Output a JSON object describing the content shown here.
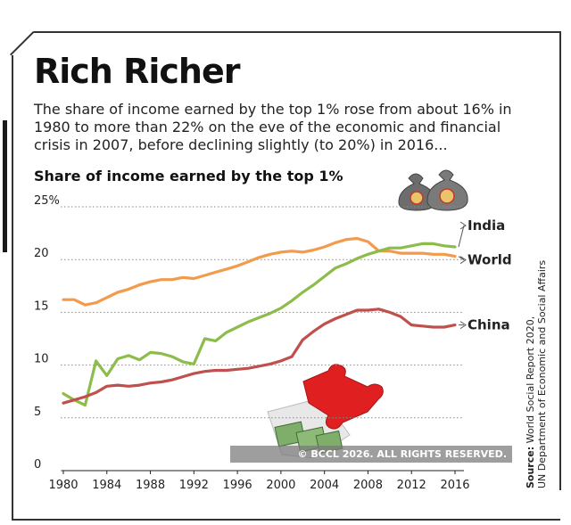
{
  "header": {
    "title": "Rich Richer",
    "subtitle": "The share of income earned by the top 1% rose from about 16% in 1980 to more than 22% on the eve of the economic and financial crisis in 2007, before declining slightly (to 20%) in 2016..."
  },
  "watermark": "© BCCL 2026. ALL RIGHTS RESERVED.",
  "source": {
    "label": "Source:",
    "text": " World Social Report 2020,",
    "text2": "UN Department of Economic and Social Affairs"
  },
  "chart_data": {
    "type": "line",
    "title": "Share of income earned by the top 1%",
    "xlabel": "",
    "ylabel": "",
    "xlim": [
      1980,
      2016
    ],
    "ylim": [
      0,
      25
    ],
    "yticks": [
      {
        "value": 25,
        "label": "25%"
      },
      {
        "value": 20,
        "label": "20"
      },
      {
        "value": 15,
        "label": "15"
      },
      {
        "value": 10,
        "label": "10"
      },
      {
        "value": 5,
        "label": "5"
      },
      {
        "value": 0,
        "label": "0"
      }
    ],
    "xticks": [
      1980,
      1984,
      1988,
      1992,
      1996,
      2000,
      2004,
      2008,
      2012,
      2016
    ],
    "grid": "dotted horizontal",
    "series": [
      {
        "name": "World",
        "color": "#f39a4b",
        "x": [
          1980,
          1981,
          1982,
          1983,
          1984,
          1985,
          1986,
          1987,
          1988,
          1989,
          1990,
          1991,
          1992,
          1993,
          1994,
          1995,
          1996,
          1997,
          1998,
          1999,
          2000,
          2001,
          2002,
          2003,
          2004,
          2005,
          2006,
          2007,
          2008,
          2009,
          2010,
          2011,
          2012,
          2013,
          2014,
          2015,
          2016
        ],
        "values": [
          16.2,
          16.2,
          15.7,
          15.9,
          16.4,
          16.9,
          17.2,
          17.6,
          17.9,
          18.1,
          18.1,
          18.3,
          18.2,
          18.5,
          18.8,
          19.1,
          19.4,
          19.8,
          20.2,
          20.5,
          20.7,
          20.8,
          20.7,
          20.9,
          21.2,
          21.6,
          21.9,
          22.0,
          21.7,
          20.8,
          20.8,
          20.6,
          20.6,
          20.6,
          20.5,
          20.5,
          20.3
        ]
      },
      {
        "name": "India",
        "color": "#8cbd4a",
        "x": [
          1980,
          1981,
          1982,
          1983,
          1984,
          1985,
          1986,
          1987,
          1988,
          1989,
          1990,
          1991,
          1992,
          1993,
          1994,
          1995,
          1996,
          1997,
          1998,
          1999,
          2000,
          2001,
          2002,
          2003,
          2004,
          2005,
          2006,
          2007,
          2008,
          2009,
          2010,
          2011,
          2012,
          2013,
          2014,
          2015,
          2016
        ],
        "values": [
          7.3,
          6.7,
          6.2,
          10.4,
          9.0,
          10.6,
          10.9,
          10.5,
          11.2,
          11.1,
          10.8,
          10.3,
          10.1,
          12.5,
          12.3,
          13.1,
          13.6,
          14.1,
          14.5,
          14.9,
          15.4,
          16.1,
          16.9,
          17.6,
          18.4,
          19.2,
          19.6,
          20.1,
          20.5,
          20.8,
          21.1,
          21.1,
          21.3,
          21.5,
          21.5,
          21.3,
          21.2
        ]
      },
      {
        "name": "China",
        "color": "#c0504d",
        "x": [
          1980,
          1981,
          1982,
          1983,
          1984,
          1985,
          1986,
          1987,
          1988,
          1989,
          1990,
          1991,
          1992,
          1993,
          1994,
          1995,
          1996,
          1997,
          1998,
          1999,
          2000,
          2001,
          2002,
          2003,
          2004,
          2005,
          2006,
          2007,
          2008,
          2009,
          2010,
          2011,
          2012,
          2013,
          2014,
          2015,
          2016
        ],
        "values": [
          6.4,
          6.7,
          7.0,
          7.4,
          8.0,
          8.1,
          8.0,
          8.1,
          8.3,
          8.4,
          8.6,
          8.9,
          9.2,
          9.4,
          9.5,
          9.5,
          9.6,
          9.7,
          9.9,
          10.1,
          10.4,
          10.8,
          12.4,
          13.2,
          13.9,
          14.4,
          14.8,
          15.2,
          15.2,
          15.3,
          15.0,
          14.6,
          13.8,
          13.7,
          13.6,
          13.6,
          13.8
        ]
      }
    ]
  }
}
